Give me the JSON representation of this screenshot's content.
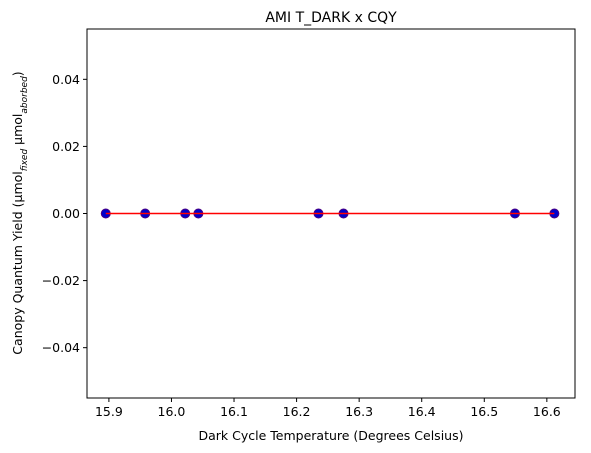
{
  "chart_data": {
    "type": "scatter",
    "title": "AMI T_DARK x CQY",
    "xlabel": "Dark Cycle Temperature (Degrees Celsius)",
    "ylabel": {
      "prefix": "Canopy Quantum Yield (µmol",
      "sub1": "fixed",
      "middle": " µmol",
      "sub2": "aborbed",
      "suffix": ")"
    },
    "xlim": [
      15.865,
      16.645
    ],
    "ylim": [
      -0.055,
      0.055
    ],
    "xticks": [
      15.9,
      16.0,
      16.1,
      16.2,
      16.3,
      16.4,
      16.5,
      16.6
    ],
    "xtick_labels": [
      "15.9",
      "16.0",
      "16.1",
      "16.2",
      "16.3",
      "16.4",
      "16.5",
      "16.6"
    ],
    "yticks": [
      -0.04,
      -0.02,
      0.0,
      0.02,
      0.04
    ],
    "ytick_labels": [
      "−0.04",
      "−0.02",
      "0.00",
      "0.02",
      "0.04"
    ],
    "grid": false,
    "series": [
      {
        "points": [
          {
            "x": 15.895,
            "y": 0.0
          },
          {
            "x": 15.958,
            "y": 0.0
          },
          {
            "x": 16.022,
            "y": 0.0
          },
          {
            "x": 16.043,
            "y": 0.0
          },
          {
            "x": 16.235,
            "y": 0.0
          },
          {
            "x": 16.275,
            "y": 0.0
          },
          {
            "x": 16.549,
            "y": 0.0
          },
          {
            "x": 16.612,
            "y": 0.0
          }
        ],
        "color": "#0000cc",
        "edge_color": "#4b0082"
      }
    ],
    "fit_line": {
      "x": [
        15.895,
        16.612
      ],
      "y": [
        0.0,
        0.0
      ],
      "color": "#ff0000"
    }
  }
}
